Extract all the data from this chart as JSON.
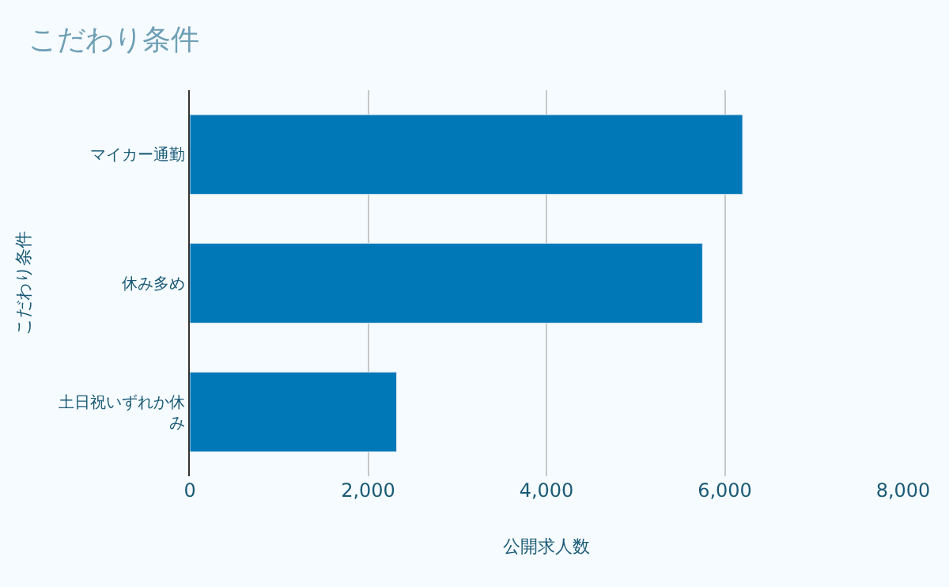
{
  "chart_data": {
    "type": "bar",
    "orientation": "horizontal",
    "title": "こだわり条件",
    "xlabel": "公開求人数",
    "ylabel": "こだわり条件",
    "categories": [
      "マイカー通勤",
      "休み多め",
      "土日祝いずれか休み"
    ],
    "values": [
      6200,
      5750,
      2320
    ],
    "color": "#0077b6",
    "xlim": [
      0,
      8000
    ],
    "xticks": [
      {
        "value": 0,
        "label": "0"
      },
      {
        "value": 2000,
        "label": "2,000"
      },
      {
        "value": 4000,
        "label": "4,000"
      },
      {
        "value": 6000,
        "label": "6,000"
      },
      {
        "value": 8000,
        "label": "8,000"
      }
    ],
    "grid": "x"
  }
}
